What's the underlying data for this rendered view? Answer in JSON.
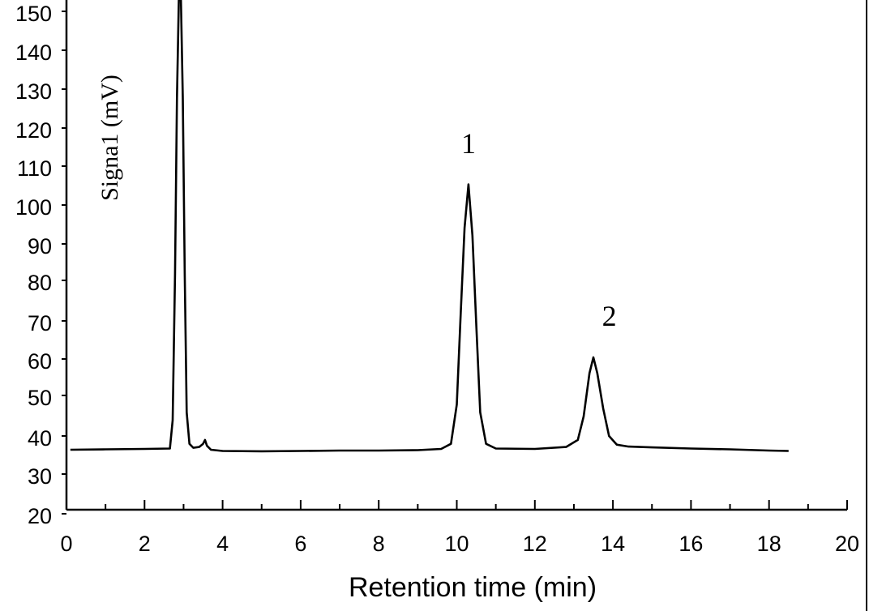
{
  "chart_data": {
    "type": "line",
    "title": "",
    "xlabel": "Retention time (min)",
    "ylabel": "Signa1 (mV)",
    "xlim": [
      0,
      20
    ],
    "ylim": [
      20,
      150
    ],
    "x_ticks": [
      0,
      2,
      4,
      6,
      8,
      10,
      12,
      14,
      16,
      18,
      20
    ],
    "x_tick_labels": [
      "0",
      "2",
      "4",
      "6",
      "8",
      "10",
      "12",
      "14",
      "16",
      "18",
      "20"
    ],
    "y_ticks": [
      20,
      30,
      40,
      50,
      60,
      70,
      80,
      90,
      100,
      110,
      120,
      130,
      140,
      150
    ],
    "y_tick_labels": [
      "20",
      "30",
      "40",
      "50",
      "60",
      "70",
      "80",
      "90",
      "100",
      "110",
      "120",
      "130",
      "140",
      "150"
    ],
    "grid": false,
    "legend": "none",
    "series": [
      {
        "x": [
          0.1,
          1.0,
          2.0,
          2.65,
          2.72,
          2.78,
          2.83,
          2.88,
          2.93,
          2.98,
          3.03,
          3.08,
          3.15,
          3.25,
          3.4,
          3.5,
          3.55,
          3.6,
          3.7,
          4.0,
          5.0,
          6.0,
          7.0,
          8.0,
          9.0,
          9.6,
          9.85,
          10.0,
          10.1,
          10.2,
          10.3,
          10.4,
          10.5,
          10.6,
          10.75,
          11.0,
          12.0,
          12.8,
          13.1,
          13.25,
          13.4,
          13.5,
          13.6,
          13.75,
          13.9,
          14.1,
          14.4,
          15.0,
          16.0,
          17.0,
          18.0,
          18.5
        ],
        "y": [
          40.5,
          40.6,
          40.7,
          40.8,
          48,
          85,
          130,
          160,
          160,
          130,
          85,
          50,
          42,
          41,
          41.2,
          42,
          43,
          41.5,
          40.5,
          40.2,
          40.1,
          40.2,
          40.3,
          40.3,
          40.4,
          40.7,
          42,
          52,
          75,
          97,
          108,
          95,
          72,
          50,
          42,
          40.8,
          40.7,
          41.2,
          43,
          49,
          60,
          64,
          60,
          51,
          44,
          41.8,
          41.3,
          41.1,
          40.8,
          40.6,
          40.3,
          40.2
        ]
      }
    ],
    "annotations": [
      {
        "text": "1",
        "x": 10.3,
        "y": 116
      },
      {
        "text": "2",
        "x": 13.7,
        "y": 72
      }
    ]
  }
}
